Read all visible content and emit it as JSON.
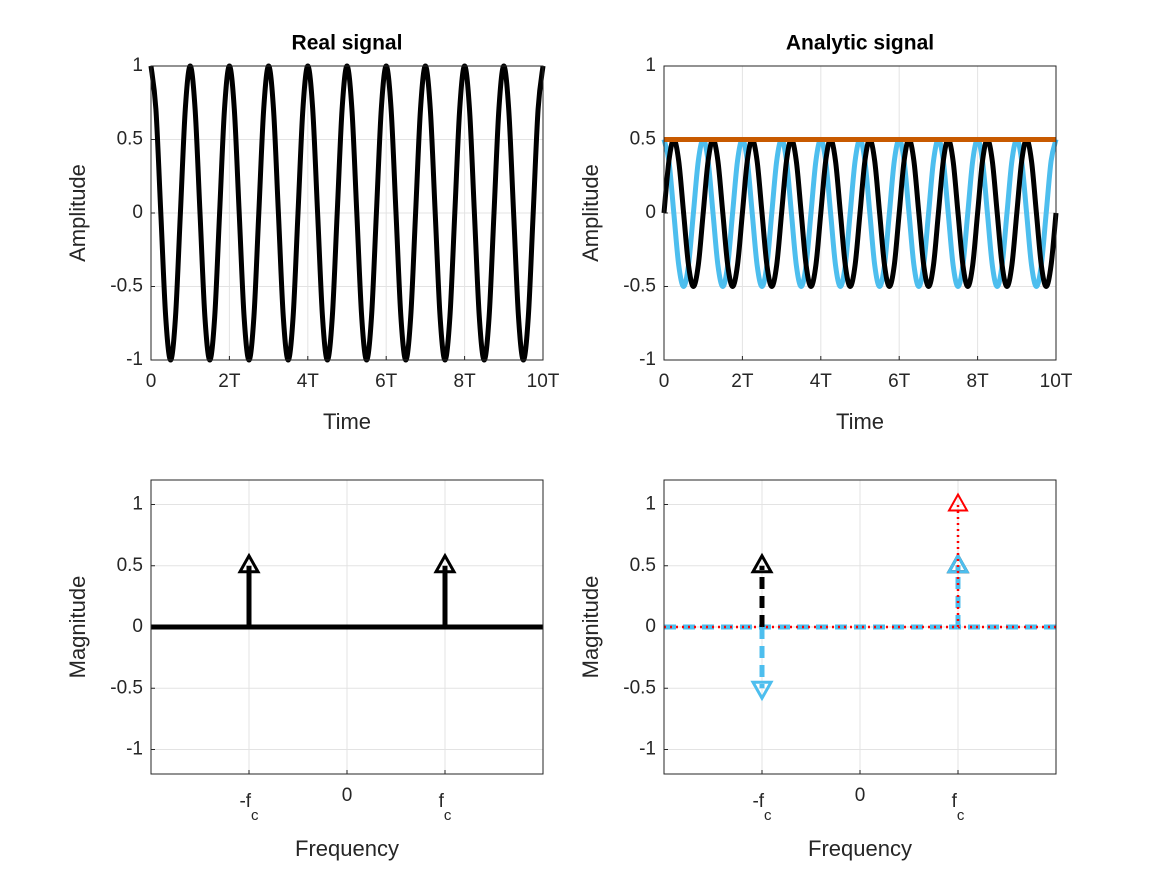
{
  "chart_data": [
    {
      "type": "line",
      "title": "Real signal",
      "xlabel": "Time",
      "ylabel": "Amplitude",
      "xlim": [
        0,
        10
      ],
      "ylim": [
        -1,
        1
      ],
      "grid": true,
      "xticks": [
        0,
        {
          "value": 2,
          "label": "2T"
        },
        {
          "value": 4,
          "label": "4T"
        },
        {
          "value": 6,
          "label": "6T"
        },
        {
          "value": 8,
          "label": "8T"
        },
        {
          "value": 10,
          "label": "10T"
        }
      ],
      "yticks": [
        -1,
        -0.5,
        0,
        0.5,
        1
      ],
      "x": [
        0,
        0.125,
        0.25,
        0.375,
        0.5,
        0.625,
        0.75,
        0.875,
        1,
        1.125,
        1.25,
        1.375,
        1.5,
        1.625,
        1.75,
        1.875,
        2,
        2.125,
        2.25,
        2.375,
        2.5,
        2.625,
        2.75,
        2.875,
        3,
        3.125,
        3.25,
        3.375,
        3.5,
        3.625,
        3.75,
        3.875,
        4,
        4.125,
        4.25,
        4.375,
        4.5,
        4.625,
        4.75,
        4.875,
        5,
        5.125,
        5.25,
        5.375,
        5.5,
        5.625,
        5.75,
        5.875,
        6,
        6.125,
        6.25,
        6.375,
        6.5,
        6.625,
        6.75,
        6.875,
        7,
        7.125,
        7.25,
        7.375,
        7.5,
        7.625,
        7.75,
        7.875,
        8,
        8.125,
        8.25,
        8.375,
        8.5,
        8.625,
        8.75,
        8.875,
        9,
        9.125,
        9.25,
        9.375,
        9.5,
        9.625,
        9.75,
        9.875,
        10
      ],
      "series": [
        {
          "color": "#000000",
          "values": [
            1,
            0.707,
            0,
            -0.707,
            -1,
            -0.707,
            0,
            0.707,
            1,
            0.707,
            0,
            -0.707,
            -1,
            -0.707,
            0,
            0.707,
            1,
            0.707,
            0,
            -0.707,
            -1,
            -0.707,
            0,
            0.707,
            1,
            0.707,
            0,
            -0.707,
            -1,
            -0.707,
            0,
            0.707,
            1,
            0.707,
            0,
            -0.707,
            -1,
            -0.707,
            0,
            0.707,
            1,
            0.707,
            0,
            -0.707,
            -1,
            -0.707,
            0,
            0.707,
            1,
            0.707,
            0,
            -0.707,
            -1,
            -0.707,
            0,
            0.707,
            1,
            0.707,
            0,
            -0.707,
            -1,
            -0.707,
            0,
            0.707,
            1,
            0.707,
            0,
            -0.707,
            -1,
            -0.707,
            0,
            0.707,
            1,
            0.707,
            0,
            -0.707,
            -1,
            -0.707,
            0,
            0.707,
            1
          ]
        }
      ]
    },
    {
      "type": "line",
      "title": "Analytic signal",
      "xlabel": "Time",
      "ylabel": "Amplitude",
      "xlim": [
        0,
        10
      ],
      "ylim": [
        -1,
        1
      ],
      "grid": true,
      "xticks": [
        0,
        {
          "value": 2,
          "label": "2T"
        },
        {
          "value": 4,
          "label": "4T"
        },
        {
          "value": 6,
          "label": "6T"
        },
        {
          "value": 8,
          "label": "8T"
        },
        {
          "value": 10,
          "label": "10T"
        }
      ],
      "yticks": [
        -1,
        -0.5,
        0,
        0.5,
        1
      ],
      "x": [
        0,
        0.125,
        0.25,
        0.375,
        0.5,
        0.625,
        0.75,
        0.875,
        1,
        1.125,
        1.25,
        1.375,
        1.5,
        1.625,
        1.75,
        1.875,
        2,
        2.125,
        2.25,
        2.375,
        2.5,
        2.625,
        2.75,
        2.875,
        3,
        3.125,
        3.25,
        3.375,
        3.5,
        3.625,
        3.75,
        3.875,
        4,
        4.125,
        4.25,
        4.375,
        4.5,
        4.625,
        4.75,
        4.875,
        5,
        5.125,
        5.25,
        5.375,
        5.5,
        5.625,
        5.75,
        5.875,
        6,
        6.125,
        6.25,
        6.375,
        6.5,
        6.625,
        6.75,
        6.875,
        7,
        7.125,
        7.25,
        7.375,
        7.5,
        7.625,
        7.75,
        7.875,
        8,
        8.125,
        8.25,
        8.375,
        8.5,
        8.625,
        8.75,
        8.875,
        9,
        9.125,
        9.25,
        9.375,
        9.5,
        9.625,
        9.75,
        9.875,
        10
      ],
      "series": [
        {
          "color": "#4dbeee",
          "values": [
            0.5,
            0.354,
            0,
            -0.354,
            -0.5,
            -0.354,
            0,
            0.354,
            0.5,
            0.354,
            0,
            -0.354,
            -0.5,
            -0.354,
            0,
            0.354,
            0.5,
            0.354,
            0,
            -0.354,
            -0.5,
            -0.354,
            0,
            0.354,
            0.5,
            0.354,
            0,
            -0.354,
            -0.5,
            -0.354,
            0,
            0.354,
            0.5,
            0.354,
            0,
            -0.354,
            -0.5,
            -0.354,
            0,
            0.354,
            0.5,
            0.354,
            0,
            -0.354,
            -0.5,
            -0.354,
            0,
            0.354,
            0.5,
            0.354,
            0,
            -0.354,
            -0.5,
            -0.354,
            0,
            0.354,
            0.5,
            0.354,
            0,
            -0.354,
            -0.5,
            -0.354,
            0,
            0.354,
            0.5,
            0.354,
            0,
            -0.354,
            -0.5,
            -0.354,
            0,
            0.354,
            0.5,
            0.354,
            0,
            -0.354,
            -0.5,
            -0.354,
            0,
            0.354,
            0.5
          ]
        },
        {
          "color": "#000000",
          "values": [
            0,
            0.354,
            0.5,
            0.354,
            0,
            -0.354,
            -0.5,
            -0.354,
            0,
            0.354,
            0.5,
            0.354,
            0,
            -0.354,
            -0.5,
            -0.354,
            0,
            0.354,
            0.5,
            0.354,
            0,
            -0.354,
            -0.5,
            -0.354,
            0,
            0.354,
            0.5,
            0.354,
            0,
            -0.354,
            -0.5,
            -0.354,
            0,
            0.354,
            0.5,
            0.354,
            0,
            -0.354,
            -0.5,
            -0.354,
            0,
            0.354,
            0.5,
            0.354,
            0,
            -0.354,
            -0.5,
            -0.354,
            0,
            0.354,
            0.5,
            0.354,
            0,
            -0.354,
            -0.5,
            -0.354,
            0,
            0.354,
            0.5,
            0.354,
            0,
            -0.354,
            -0.5,
            -0.354,
            0,
            0.354,
            0.5,
            0.354,
            0,
            -0.354,
            -0.5,
            -0.354,
            0,
            0.354,
            0.5,
            0.354,
            0,
            -0.354,
            -0.5,
            -0.354,
            0
          ]
        },
        {
          "color": "#c85a00",
          "x": [
            0,
            10
          ],
          "values": [
            0.5,
            0.5
          ]
        }
      ]
    },
    {
      "type": "stem",
      "xlabel": "Frequency",
      "ylabel": "Magnitude",
      "xlim": [
        -2,
        2
      ],
      "ylim": [
        -1.2,
        1.2
      ],
      "grid": true,
      "xticks": [
        {
          "value": -1,
          "label": "-f",
          "subscript": "c"
        },
        0,
        {
          "value": 1,
          "label": "f",
          "subscript": "c"
        }
      ],
      "yticks": [
        -1,
        -0.5,
        0,
        0.5,
        1
      ],
      "series": [
        {
          "color": "#000000",
          "linestyle": "solid",
          "x": [
            -1,
            1
          ],
          "values": [
            0.5,
            0.5
          ]
        }
      ]
    },
    {
      "type": "stem",
      "xlabel": "Frequency",
      "ylabel": "Magnitude",
      "xlim": [
        -2,
        2
      ],
      "ylim": [
        -1.2,
        1.2
      ],
      "grid": true,
      "xticks": [
        {
          "value": -1,
          "label": "-f",
          "subscript": "c"
        },
        0,
        {
          "value": 1,
          "label": "f",
          "subscript": "c"
        }
      ],
      "yticks": [
        -1,
        -0.5,
        0,
        0.5,
        1
      ],
      "series": [
        {
          "color": "#000000",
          "linestyle": "dashed",
          "x": [
            -1,
            1
          ],
          "values": [
            0.5,
            0.5
          ]
        },
        {
          "color": "#4dbeee",
          "linestyle": "dashed",
          "x": [
            -1,
            1
          ],
          "values": [
            -0.5,
            0.5
          ]
        },
        {
          "color": "#ff0000",
          "linestyle": "dotted",
          "x": [
            -1,
            1
          ],
          "values": [
            0,
            1
          ]
        }
      ]
    }
  ]
}
